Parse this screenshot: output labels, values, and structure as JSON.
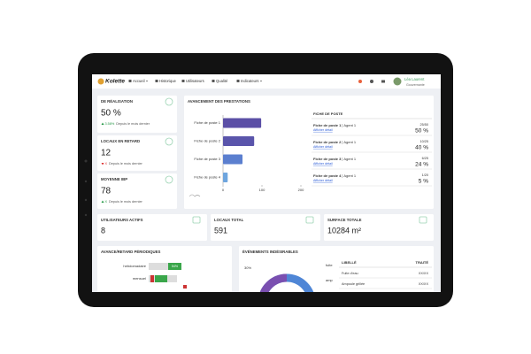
{
  "nav": {
    "brand": "Kolette",
    "menu": [
      "Accueil",
      "Historique",
      "Utilisateurs",
      "Qualité",
      "Indicateurs"
    ],
    "user": {
      "name": "Léa Laurent",
      "role": "Gouvernante"
    }
  },
  "kpis": [
    {
      "title": "DE RÉALISATION",
      "value": "50 %",
      "trend": "3.58%",
      "note": "Depuis le mois dernier"
    },
    {
      "title": "LOCAUX EN RETARD",
      "value": "12",
      "trend": "X",
      "note": "Depuis le mois dernier"
    },
    {
      "title": "MOYENNE IBP",
      "value": "78",
      "trend": "X",
      "note": "Depuis le mois dernier"
    }
  ],
  "progress_chart": {
    "type": "bar",
    "title": "AVANCEMENT DES PRESTATIONS",
    "categories": [
      "Fiche de poste 1",
      "Fiche de poste 2",
      "Fiche de poste 3",
      "Fiche de poste 4"
    ],
    "values": [
      98,
      80,
      50,
      12
    ],
    "colors": [
      "#5b4fa6",
      "#5a55ab",
      "#5b7fcf",
      "#6ea5de"
    ],
    "xlim": [
      0,
      200
    ],
    "xticks": [
      0,
      100,
      200
    ]
  },
  "job_list": {
    "title": "FICHE DE POSTE",
    "rows": [
      {
        "name": "Fiche de poste 1",
        "agent": "Agent 1",
        "link": "Afficher détail",
        "count": "25/50",
        "percent": "50 %"
      },
      {
        "name": "Fiche de poste 2",
        "agent": "Agent 1",
        "link": "Afficher détail",
        "count": "10/25",
        "percent": "40 %"
      },
      {
        "name": "Fiche de poste 3",
        "agent": "Agent 1",
        "link": "Afficher détail",
        "count": "6/25",
        "percent": "24 %"
      },
      {
        "name": "Fiche de poste 4",
        "agent": "Agent 1",
        "link": "Afficher détail",
        "count": "1/20",
        "percent": "5 %"
      }
    ]
  },
  "stats": [
    {
      "title": "UTILISATEURS ACTIFS",
      "value": "8"
    },
    {
      "title": "LOCAUX TOTAL",
      "value": "591"
    },
    {
      "title": "SURFACE TOTALE",
      "value": "10284 m²"
    }
  ],
  "periodic": {
    "title": "AVANCE/RETARD PÉRIODIQUES",
    "rows": [
      {
        "label": "hebdomadaire",
        "percent": "54%"
      },
      {
        "label": "mensuel"
      }
    ]
  },
  "events": {
    "title": "ÉVÉNEMENTS INDÉSIRABLES",
    "donut_label": "30%",
    "legend": [
      "fuite",
      "amp"
    ],
    "columns": [
      "LIBELLÉ",
      "TRAITÉ"
    ],
    "rows": [
      [
        "Fuite d'eau",
        "XX/XX"
      ],
      [
        "Ampoule grillée",
        "XX/XX"
      ]
    ]
  }
}
